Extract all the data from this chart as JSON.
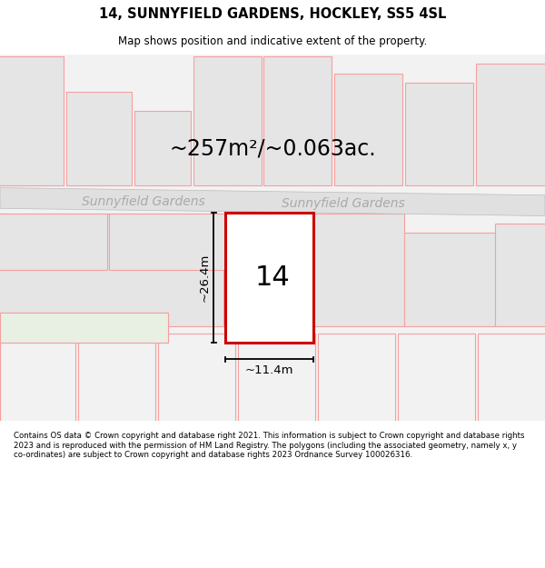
{
  "title": "14, SUNNYFIELD GARDENS, HOCKLEY, SS5 4SL",
  "subtitle": "Map shows position and indicative extent of the property.",
  "area_label": "~257m²/~0.063ac.",
  "width_label": "~11.4m",
  "height_label": "~26.4m",
  "property_number": "14",
  "street_name_left": "Sunnyfield Gardens",
  "street_name_right": "Sunnyfield Gardens",
  "footer": "Contains OS data © Crown copyright and database right 2021. This information is subject to Crown copyright and database rights 2023 and is reproduced with the permission of HM Land Registry. The polygons (including the associated geometry, namely x, y co-ordinates) are subject to Crown copyright and database rights 2023 Ordnance Survey 100026316.",
  "bg_color": "#f2f2f2",
  "plot_border_color": "#f5a0a0",
  "dim_line_color": "#000000",
  "road_color": "#e0e0e0",
  "road_edge_color": "#bbbbbb",
  "neighbour_fill": "#e5e5e5",
  "green_fill": "#e8f0e4",
  "white_fill": "#ffffff",
  "subject_border": "#cc0000",
  "street_label_color": "#aaaaaa",
  "title_fontsize": 10.5,
  "subtitle_fontsize": 8.5,
  "area_fontsize": 17,
  "street_fontsize": 10,
  "number_fontsize": 22,
  "dim_fontsize": 9.5,
  "footer_fontsize": 6.2
}
